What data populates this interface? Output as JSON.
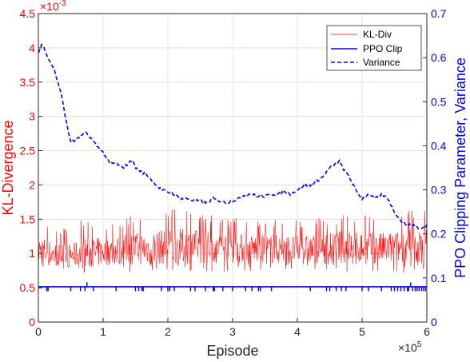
{
  "chart_data": {
    "type": "line",
    "xlabel": "Episode",
    "x_multiplier": "×10",
    "x_multiplier_exp": "5",
    "ylabel_left": "KL-Divergence",
    "ylabel_right": "PPO Clipping Parameter, Variance",
    "y_left_multiplier": "×10",
    "y_left_multiplier_exp": "-3",
    "xlim": [
      0,
      6
    ],
    "ylim_left": [
      0,
      4.5
    ],
    "ylim_right": [
      0,
      0.7
    ],
    "x_ticks": [
      "0",
      "1",
      "2",
      "3",
      "4",
      "5",
      "6"
    ],
    "y_left_ticks": [
      "0",
      "0.5",
      "1",
      "1.5",
      "2",
      "2.5",
      "3",
      "3.5",
      "4",
      "4.5"
    ],
    "y_right_ticks": [
      "0",
      "0.1",
      "0.2",
      "0.3",
      "0.4",
      "0.5",
      "0.6",
      "0.7"
    ],
    "grid": true,
    "legend_position": "top-right",
    "colors": {
      "left_axis": "#ff0000",
      "right_axis": "#0000ff",
      "kl": "#ff0000",
      "clip": "#0000ff",
      "variance": "#0000ff"
    },
    "series": [
      {
        "name": "KL-Div",
        "axis": "left",
        "style": "solid-thin",
        "x": [
          0,
          0.25,
          0.5,
          0.75,
          1.0,
          1.25,
          1.5,
          1.75,
          2.0,
          2.25,
          2.5,
          2.75,
          3.0,
          3.25,
          3.5,
          3.75,
          4.0,
          4.25,
          4.5,
          4.75,
          5.0,
          5.25,
          5.5,
          5.75,
          6.0
        ],
        "mean": [
          1.05,
          0.98,
          0.97,
          1.0,
          1.02,
          1.05,
          1.07,
          1.08,
          1.1,
          1.1,
          1.1,
          1.09,
          1.08,
          1.07,
          1.06,
          1.06,
          1.05,
          1.06,
          1.08,
          1.1,
          1.08,
          1.07,
          1.08,
          1.09,
          1.1
        ],
        "band_low": [
          0.75,
          0.75,
          0.72,
          0.72,
          0.72,
          0.72,
          0.73,
          0.73,
          0.73,
          0.73,
          0.73,
          0.73,
          0.73,
          0.73,
          0.73,
          0.72,
          0.72,
          0.72,
          0.72,
          0.72,
          0.72,
          0.72,
          0.72,
          0.72,
          0.72
        ],
        "band_high": [
          1.6,
          1.4,
          1.35,
          1.6,
          1.45,
          1.5,
          1.6,
          1.65,
          1.65,
          1.7,
          1.6,
          1.55,
          1.55,
          1.5,
          1.5,
          1.5,
          1.5,
          1.5,
          1.55,
          1.6,
          1.6,
          1.55,
          1.6,
          1.65,
          1.7
        ]
      },
      {
        "name": "PPO Clip",
        "axis": "right",
        "style": "solid",
        "baseline": 0.08,
        "spike_down_to": 0.07,
        "spikes_up_at": [
          0.75,
          5.75
        ],
        "spike_up_to": 0.09,
        "dips_x": [
          0.13,
          0.15,
          0.5,
          0.65,
          0.72,
          0.85,
          1.2,
          1.5,
          1.55,
          1.6,
          1.62,
          1.9,
          2.0,
          2.03,
          2.1,
          2.35,
          2.42,
          2.58,
          2.7,
          2.72,
          2.85,
          3.0,
          3.2,
          3.3,
          3.4,
          3.43,
          3.6,
          4.2,
          4.45,
          4.5,
          4.6,
          4.68,
          4.75,
          5.0,
          5.1,
          5.3,
          5.45,
          5.5,
          5.55,
          5.6,
          5.65,
          5.7,
          5.72,
          5.78,
          5.82,
          5.85,
          5.88,
          5.92,
          5.95,
          5.98
        ]
      },
      {
        "name": "Variance",
        "axis": "right",
        "style": "dashed",
        "x": [
          0,
          0.05,
          0.1,
          0.15,
          0.25,
          0.35,
          0.45,
          0.5,
          0.55,
          0.65,
          0.72,
          0.8,
          0.9,
          1.0,
          1.1,
          1.2,
          1.3,
          1.4,
          1.45,
          1.5,
          1.6,
          1.7,
          1.8,
          1.9,
          2.0,
          2.1,
          2.2,
          2.3,
          2.4,
          2.5,
          2.6,
          2.7,
          2.8,
          2.9,
          3.0,
          3.1,
          3.2,
          3.3,
          3.4,
          3.5,
          3.6,
          3.7,
          3.8,
          3.9,
          4.0,
          4.1,
          4.2,
          4.3,
          4.4,
          4.5,
          4.6,
          4.65,
          4.7,
          4.8,
          4.9,
          5.0,
          5.1,
          5.2,
          5.3,
          5.4,
          5.5,
          5.6,
          5.7,
          5.8,
          5.9,
          6.0
        ],
        "y": [
          0.61,
          0.63,
          0.62,
          0.6,
          0.57,
          0.52,
          0.44,
          0.41,
          0.41,
          0.42,
          0.43,
          0.42,
          0.4,
          0.385,
          0.36,
          0.36,
          0.35,
          0.36,
          0.37,
          0.35,
          0.34,
          0.33,
          0.315,
          0.3,
          0.295,
          0.29,
          0.28,
          0.28,
          0.275,
          0.275,
          0.27,
          0.28,
          0.275,
          0.27,
          0.275,
          0.28,
          0.29,
          0.29,
          0.285,
          0.285,
          0.29,
          0.29,
          0.295,
          0.29,
          0.3,
          0.31,
          0.31,
          0.32,
          0.33,
          0.35,
          0.36,
          0.365,
          0.35,
          0.33,
          0.3,
          0.28,
          0.29,
          0.28,
          0.29,
          0.28,
          0.25,
          0.23,
          0.22,
          0.22,
          0.21,
          0.22
        ]
      }
    ]
  }
}
